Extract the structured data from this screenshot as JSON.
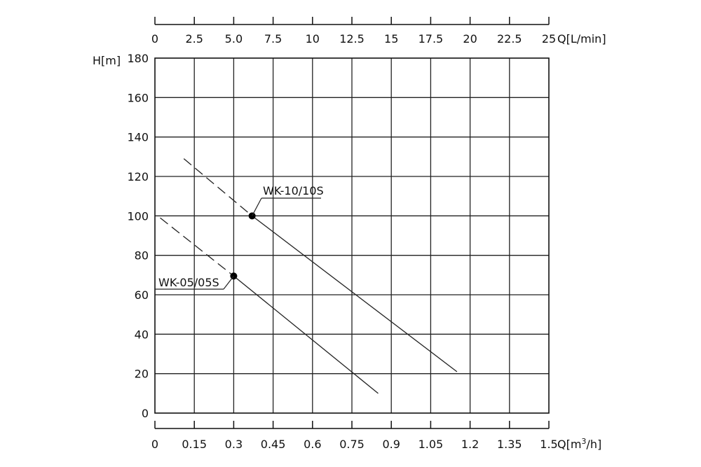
{
  "chart_data": {
    "type": "line",
    "x_top": {
      "label": "Q[L/min]",
      "ticks": [
        "0",
        "2.5",
        "5.0",
        "7.5",
        "10",
        "12.5",
        "15",
        "17.5",
        "20",
        "22.5",
        "25"
      ],
      "range": [
        0,
        25
      ]
    },
    "x_bottom": {
      "label_prefix": "Q[m",
      "label_sup": "3",
      "label_suffix": "/h]",
      "ticks": [
        "0",
        "0.15",
        "0.3",
        "0.45",
        "0.6",
        "0.75",
        "0.9",
        "1.05",
        "1.2",
        "1.35",
        "1.5"
      ],
      "range": [
        0,
        1.5
      ]
    },
    "y": {
      "label": "H[m]",
      "ticks": [
        "0",
        "20",
        "40",
        "60",
        "80",
        "100",
        "120",
        "140",
        "160",
        "180"
      ],
      "range": [
        0,
        180
      ]
    },
    "grid": true,
    "series": [
      {
        "name": "WK-10/10S",
        "dashed": {
          "x": [
            0.11,
            0.37
          ],
          "y": [
            129,
            100
          ]
        },
        "solid": {
          "x": [
            0.37,
            1.15
          ],
          "y": [
            100,
            21
          ]
        },
        "point": {
          "x": 0.37,
          "y": 100
        }
      },
      {
        "name": "WK-05/05S",
        "dashed": {
          "x": [
            0.02,
            0.3
          ],
          "y": [
            99,
            69.5
          ]
        },
        "solid": {
          "x": [
            0.3,
            0.85
          ],
          "y": [
            69.5,
            10
          ]
        },
        "point": {
          "x": 0.3,
          "y": 69.5
        }
      }
    ]
  }
}
